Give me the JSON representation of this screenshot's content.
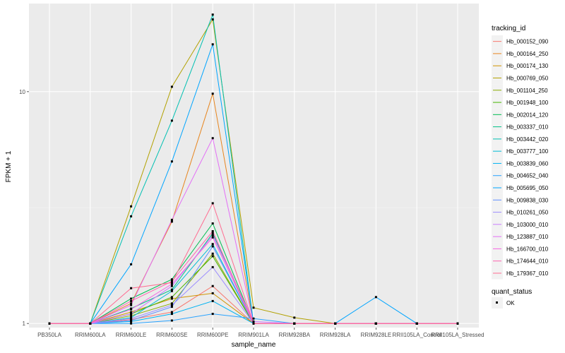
{
  "chart_data": {
    "type": "line",
    "title": "",
    "xlabel": "sample_name",
    "ylabel": "FPKM + 1",
    "y_scale": "log10",
    "ylim": [
      0.96,
      24
    ],
    "y_ticks": [
      1,
      10
    ],
    "grid": true,
    "legend_placement": "right",
    "categories": [
      "PB350LA",
      "RRIM600LA",
      "RRIM600LE",
      "RRIM600SE",
      "RRIM600PE",
      "RRIM901LA",
      "RRIM928BA",
      "RRIM928LA",
      "RRIM928LE",
      "RRII105LA_Control",
      "RRII105LA_Stressed"
    ],
    "legend_title": "tracking_id",
    "series": [
      {
        "name": "Hb_000152_090",
        "color": "#F8766D",
        "values": [
          1,
          1,
          1.04,
          1.12,
          1.45,
          1.0,
          1.0,
          1.0,
          1.0,
          1.0,
          1.0
        ]
      },
      {
        "name": "Hb_000164_250",
        "color": "#E7851E",
        "values": [
          1,
          1,
          1.22,
          2.75,
          9.8,
          1.0,
          1.0,
          1.0,
          1.0,
          1.0,
          1.0
        ]
      },
      {
        "name": "Hb_000174_130",
        "color": "#D09400",
        "values": [
          1,
          1,
          1.12,
          1.28,
          1.35,
          1.0,
          1.0,
          1.0,
          1.0,
          1.0,
          1.0
        ]
      },
      {
        "name": "Hb_000769_050",
        "color": "#B2A100",
        "values": [
          1,
          1,
          3.2,
          10.5,
          20.5,
          1.17,
          1.06,
          1.0,
          1.0,
          1.0,
          1.0
        ]
      },
      {
        "name": "Hb_001104_250",
        "color": "#89AC00",
        "values": [
          1,
          1,
          1.08,
          1.22,
          2.0,
          1.0,
          1.0,
          1.0,
          1.0,
          1.0,
          1.0
        ]
      },
      {
        "name": "Hb_001948_100",
        "color": "#45B500",
        "values": [
          1,
          1,
          1.1,
          1.3,
          1.95,
          1.0,
          1.0,
          1.0,
          1.0,
          1.0,
          1.0
        ]
      },
      {
        "name": "Hb_002014_120",
        "color": "#00BC51",
        "values": [
          1,
          1,
          1.28,
          1.55,
          2.7,
          1.0,
          1.0,
          1.0,
          1.0,
          1.0,
          1.0
        ]
      },
      {
        "name": "Hb_003337_010",
        "color": "#00C087",
        "values": [
          1,
          1,
          1.16,
          1.4,
          2.45,
          1.0,
          1.0,
          1.0,
          1.0,
          1.0,
          1.0
        ]
      },
      {
        "name": "Hb_003442_020",
        "color": "#00C0B2",
        "values": [
          1,
          1,
          2.9,
          7.5,
          21.5,
          1.0,
          1.0,
          1.0,
          1.0,
          1.0,
          1.0
        ]
      },
      {
        "name": "Hb_003777_100",
        "color": "#00BCD6",
        "values": [
          1,
          1,
          1.06,
          1.38,
          2.2,
          1.0,
          1.0,
          1.0,
          1.0,
          1.0,
          1.0
        ]
      },
      {
        "name": "Hb_003839_060",
        "color": "#00B3F2",
        "values": [
          1,
          1,
          1.02,
          1.1,
          1.25,
          1.0,
          1.0,
          1.0,
          1.0,
          1.0,
          1.0
        ]
      },
      {
        "name": "Hb_004652_040",
        "color": "#29A3FF",
        "values": [
          1,
          1,
          1.0,
          1.03,
          1.1,
          1.05,
          1.0,
          1.0,
          1.0,
          1.0,
          1.0
        ]
      },
      {
        "name": "Hb_005695_050",
        "color": "#00A5FF",
        "values": [
          1,
          1,
          1.8,
          5.0,
          16.0,
          1.0,
          1.0,
          1.0,
          1.3,
          1.0,
          1.0
        ]
      },
      {
        "name": "Hb_009838_030",
        "color": "#5F8EFF",
        "values": [
          1,
          1,
          1.03,
          1.18,
          2.15,
          1.0,
          1.0,
          1.0,
          1.0,
          1.0,
          1.0
        ]
      },
      {
        "name": "Hb_010261_050",
        "color": "#9C8DFF",
        "values": [
          1,
          1,
          1.05,
          1.2,
          1.75,
          1.0,
          1.0,
          1.0,
          1.0,
          1.0,
          1.0
        ]
      },
      {
        "name": "Hb_103000_010",
        "color": "#C77CFF",
        "values": [
          1,
          1,
          1.1,
          1.45,
          2.4,
          1.02,
          1.0,
          1.0,
          1.0,
          1.0,
          1.0
        ]
      },
      {
        "name": "Hb_123887_010",
        "color": "#E36EF6",
        "values": [
          1,
          1,
          1.2,
          2.8,
          6.3,
          1.0,
          1.0,
          1.0,
          1.0,
          1.0,
          1.0
        ]
      },
      {
        "name": "Hb_166700_010",
        "color": "#F564E3",
        "values": [
          1,
          1,
          1.15,
          1.48,
          2.35,
          1.0,
          1.0,
          1.0,
          1.0,
          1.0,
          1.0
        ]
      },
      {
        "name": "Hb_174644_010",
        "color": "#FF64B0",
        "values": [
          1,
          1,
          1.25,
          1.52,
          2.5,
          1.0,
          1.0,
          1.0,
          1.0,
          1.0,
          1.0
        ]
      },
      {
        "name": "Hb_179367_010",
        "color": "#FF6C91",
        "values": [
          1,
          1,
          1.42,
          1.5,
          3.3,
          1.0,
          1.0,
          1.0,
          1.0,
          1.0,
          1.0
        ]
      }
    ],
    "quant_legend": {
      "title": "quant_status",
      "label": "OK"
    }
  }
}
